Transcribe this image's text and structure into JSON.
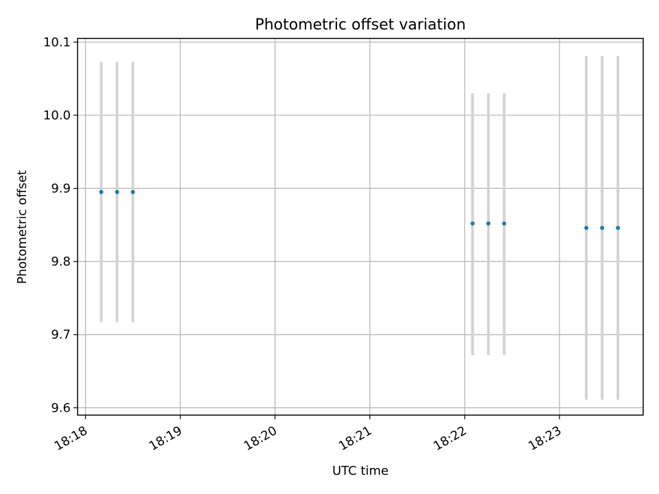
{
  "chart_data": {
    "type": "scatter",
    "title": "Photometric offset variation",
    "xlabel": "UTC time",
    "ylabel": "Photometric offset",
    "xlim": [
      "18:17:55",
      "18:23:53"
    ],
    "ylim": [
      9.59,
      10.105
    ],
    "x_ticks": [
      "18:18",
      "18:19",
      "18:20",
      "18:21",
      "18:22",
      "18:23"
    ],
    "y_ticks": [
      9.6,
      9.7,
      9.8,
      9.9,
      10.0,
      10.1
    ],
    "y_tick_labels": [
      "9.6",
      "9.7",
      "9.8",
      "9.9",
      "10.0",
      "10.1"
    ],
    "grid": true,
    "points": [
      {
        "x": "18:18:10",
        "y": 9.895,
        "err_low": 9.717,
        "err_high": 10.073
      },
      {
        "x": "18:18:20",
        "y": 9.895,
        "err_low": 9.717,
        "err_high": 10.073
      },
      {
        "x": "18:18:30",
        "y": 9.895,
        "err_low": 9.717,
        "err_high": 10.073
      },
      {
        "x": "18:22:05",
        "y": 9.852,
        "err_low": 9.672,
        "err_high": 10.03
      },
      {
        "x": "18:22:15",
        "y": 9.852,
        "err_low": 9.672,
        "err_high": 10.03
      },
      {
        "x": "18:22:25",
        "y": 9.852,
        "err_low": 9.672,
        "err_high": 10.03
      },
      {
        "x": "18:23:17",
        "y": 9.846,
        "err_low": 9.611,
        "err_high": 10.081
      },
      {
        "x": "18:23:27",
        "y": 9.846,
        "err_low": 9.611,
        "err_high": 10.081
      },
      {
        "x": "18:23:37",
        "y": 9.846,
        "err_low": 9.611,
        "err_high": 10.081
      }
    ],
    "colors": {
      "marker": "#1f77b4",
      "errorbar": "#d3d3d3",
      "grid": "#b0b0b0",
      "axes": "#000000"
    }
  }
}
